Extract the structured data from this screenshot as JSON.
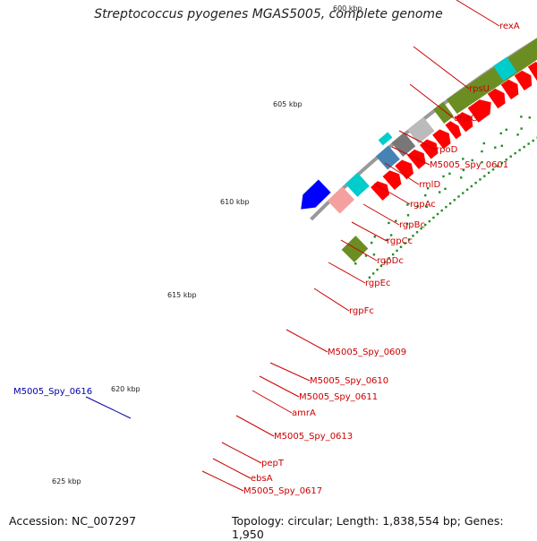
{
  "header": {
    "title": "Streptococcus pyogenes MGAS5005, complete genome"
  },
  "footer": {
    "accession": "Accession: NC_007297",
    "topology": "Topology: circular; Length: 1,838,554 bp; Genes: 1,950"
  },
  "ticks": [
    {
      "label": "600 kbp",
      "major": true
    },
    {
      "label": "605 kbp",
      "major": true
    },
    {
      "label": "610 kbp",
      "major": true
    },
    {
      "label": "615 kbp",
      "major": true
    },
    {
      "label": "620 kbp",
      "major": true
    },
    {
      "label": "625 kbp",
      "major": true
    }
  ],
  "genes": [
    {
      "name": "rexA",
      "color": "#cc0000"
    },
    {
      "name": "rpsU",
      "color": "#cc0000"
    },
    {
      "name": "dnaG",
      "color": "#cc0000"
    },
    {
      "name": "rpoD",
      "color": "#cc0000"
    },
    {
      "name": "M5005_Spy_0601",
      "color": "#cc0000"
    },
    {
      "name": "rmlD",
      "color": "#cc0000"
    },
    {
      "name": "rgpAc",
      "color": "#cc0000"
    },
    {
      "name": "rgpBc",
      "color": "#cc0000"
    },
    {
      "name": "rgpCc",
      "color": "#cc0000"
    },
    {
      "name": "rgpDc",
      "color": "#cc0000"
    },
    {
      "name": "rgpEc",
      "color": "#cc0000"
    },
    {
      "name": "rgpFc",
      "color": "#cc0000"
    },
    {
      "name": "M5005_Spy_0609",
      "color": "#cc0000"
    },
    {
      "name": "M5005_Spy_0610",
      "color": "#cc0000"
    },
    {
      "name": "M5005_Spy_0611",
      "color": "#cc0000"
    },
    {
      "name": "amrA",
      "color": "#cc0000"
    },
    {
      "name": "M5005_Spy_0613",
      "color": "#cc0000"
    },
    {
      "name": "pepT",
      "color": "#cc0000"
    },
    {
      "name": "ebsA",
      "color": "#cc0000"
    },
    {
      "name": "M5005_Spy_0617",
      "color": "#cc0000"
    },
    {
      "name": "M5005_Spy_0616",
      "color": "#0000aa"
    }
  ],
  "colors": {
    "backbone": "#999999",
    "cds": "#ff0000",
    "pink": "#ff3399",
    "orange": "#ff9900",
    "olive": "#6b8e23",
    "cyan": "#00cccc",
    "steel": "#4682b4",
    "blue": "#0000ff",
    "gc_dots": "#228b22"
  }
}
